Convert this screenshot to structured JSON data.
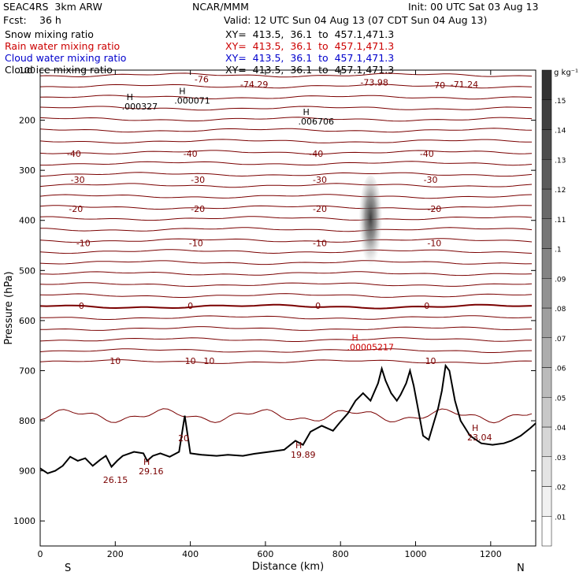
{
  "header": {
    "model": "SEAC4RS  3km ARW",
    "org": "NCAR/MMM",
    "init": "Init: 00 UTC Sat 03 Aug 13",
    "fcst_label": "Fcst:",
    "fcst_value": "36 h",
    "valid": "Valid: 12 UTC Sun 04 Aug 13 (07 CDT Sun 04 Aug 13)",
    "fields": [
      {
        "name": "Snow mixing ratio",
        "xy": "XY=  413.5,  36.1  to  457.1,471.3",
        "color": "#000000"
      },
      {
        "name": "Rain water mixing ratio",
        "xy": "XY=  413.5,  36.1  to  457.1,471.3",
        "color": "#cc0000"
      },
      {
        "name": "Cloud water mixing ratio",
        "xy": "XY=  413.5,  36.1  to  457.1,471.3",
        "color": "#0000cc"
      },
      {
        "name": "Cloud ice mixing ratio",
        "xy": "XY=  413.5,  36.1  to  457.1,471.3",
        "color": "#000000"
      }
    ]
  },
  "chart_data": {
    "type": "cross-section",
    "xlabel": "Distance (km)",
    "ylabel": "Pressure (hPa)",
    "xlim": [
      0,
      1320
    ],
    "ylim": [
      1050,
      100
    ],
    "xticks": [
      0,
      200,
      400,
      600,
      800,
      1000,
      1200
    ],
    "yticks": [
      100,
      200,
      300,
      400,
      500,
      600,
      700,
      800,
      900,
      1000
    ],
    "endpoint_labels": {
      "left": "S",
      "right": "N"
    },
    "colorbar": {
      "unit": "g kg⁻¹",
      "levels": [
        0.01,
        0.02,
        0.03,
        0.04,
        0.05,
        0.06,
        0.07,
        0.08,
        0.09,
        0.1,
        0.11,
        0.12,
        0.13,
        0.14,
        0.15
      ],
      "tick_labels": [
        ".01",
        ".02",
        ".03",
        ".04",
        ".05",
        ".06",
        ".07",
        ".08",
        ".09",
        ".1",
        ".11",
        ".12",
        ".13",
        ".14",
        ".15"
      ]
    },
    "shaded_feature": {
      "x_center": 880,
      "p_top": 310,
      "p_bottom": 500,
      "max_value": 0.13
    },
    "contour_color": "#7a0000",
    "contour_label_levels": [
      {
        "value": -40,
        "p": 267,
        "labels": [
          {
            "x": 90,
            "t": "-40"
          },
          {
            "x": 400,
            "t": "-40"
          },
          {
            "x": 735,
            "t": "-40"
          },
          {
            "x": 1030,
            "t": "-40"
          }
        ]
      },
      {
        "value": -30,
        "p": 319,
        "labels": [
          {
            "x": 100,
            "t": "-30"
          },
          {
            "x": 420,
            "t": "-30"
          },
          {
            "x": 745,
            "t": "-30"
          },
          {
            "x": 1040,
            "t": "-30"
          }
        ]
      },
      {
        "value": -20,
        "p": 377,
        "labels": [
          {
            "x": 95,
            "t": "-20"
          },
          {
            "x": 420,
            "t": "-20"
          },
          {
            "x": 745,
            "t": "-20"
          },
          {
            "x": 1050,
            "t": "-20"
          }
        ]
      },
      {
        "value": -10,
        "p": 445,
        "labels": [
          {
            "x": 115,
            "t": "-10"
          },
          {
            "x": 415,
            "t": "-10"
          },
          {
            "x": 745,
            "t": "-10"
          },
          {
            "x": 1050,
            "t": "-10"
          }
        ]
      },
      {
        "value": 0,
        "p": 570,
        "labels": [
          {
            "x": 110,
            "t": "0"
          },
          {
            "x": 400,
            "t": "0"
          },
          {
            "x": 740,
            "t": "0"
          },
          {
            "x": 1030,
            "t": "0"
          }
        ]
      },
      {
        "value": 10,
        "p": 680,
        "labels": [
          {
            "x": 200,
            "t": "10"
          },
          {
            "x": 400,
            "t": "10"
          },
          {
            "x": 450,
            "t": "10"
          },
          {
            "x": 1040,
            "t": "10"
          }
        ]
      }
    ],
    "top_labels": [
      {
        "x": 430,
        "p": 118,
        "t": "-76"
      },
      {
        "x": 570,
        "p": 128,
        "t": "-74.29"
      },
      {
        "x": 890,
        "p": 124,
        "t": "-73.98"
      },
      {
        "x": 1060,
        "p": 130,
        "t": "-70"
      },
      {
        "x": 1130,
        "p": 128,
        "t": "-71.24"
      }
    ],
    "extrema": [
      {
        "x": 230,
        "p": 160,
        "kind": "H",
        "value": ".000327",
        "color": "#000000"
      },
      {
        "x": 370,
        "p": 148,
        "kind": "H",
        "value": ".000071",
        "color": "#000000"
      },
      {
        "x": 700,
        "p": 190,
        "kind": "H",
        "value": ".006706",
        "color": "#000000"
      },
      {
        "x": 830,
        "p": 640,
        "kind": "H",
        "value": ".00005217",
        "color": "#cc0000"
      },
      {
        "x": 680,
        "p": 855,
        "kind": "H",
        "value": "19.89",
        "color": "#7a0000"
      },
      {
        "x": 275,
        "p": 888,
        "kind": "H",
        "value": "29.16",
        "color": "#7a0000"
      },
      {
        "x": 1150,
        "p": 820,
        "kind": "H",
        "value": "23.04",
        "color": "#7a0000"
      },
      {
        "x": 180,
        "p": 905,
        "kind": "",
        "value": "26.15",
        "color": "#7a0000"
      },
      {
        "x": 380,
        "p": 822,
        "kind": "",
        "value": "20",
        "color": "#7a0000"
      }
    ],
    "terrain": [
      [
        0,
        895
      ],
      [
        20,
        905
      ],
      [
        40,
        900
      ],
      [
        60,
        890
      ],
      [
        80,
        872
      ],
      [
        100,
        880
      ],
      [
        120,
        875
      ],
      [
        140,
        890
      ],
      [
        160,
        878
      ],
      [
        175,
        870
      ],
      [
        190,
        892
      ],
      [
        205,
        880
      ],
      [
        220,
        870
      ],
      [
        250,
        862
      ],
      [
        275,
        865
      ],
      [
        285,
        880
      ],
      [
        300,
        870
      ],
      [
        320,
        865
      ],
      [
        345,
        872
      ],
      [
        370,
        862
      ],
      [
        385,
        790
      ],
      [
        400,
        865
      ],
      [
        430,
        868
      ],
      [
        470,
        870
      ],
      [
        500,
        868
      ],
      [
        540,
        870
      ],
      [
        570,
        866
      ],
      [
        610,
        862
      ],
      [
        650,
        858
      ],
      [
        680,
        840
      ],
      [
        700,
        848
      ],
      [
        720,
        822
      ],
      [
        750,
        810
      ],
      [
        780,
        820
      ],
      [
        800,
        802
      ],
      [
        820,
        785
      ],
      [
        840,
        760
      ],
      [
        860,
        745
      ],
      [
        880,
        760
      ],
      [
        900,
        725
      ],
      [
        910,
        696
      ],
      [
        920,
        720
      ],
      [
        935,
        745
      ],
      [
        950,
        760
      ],
      [
        960,
        748
      ],
      [
        975,
        725
      ],
      [
        985,
        700
      ],
      [
        995,
        730
      ],
      [
        1005,
        770
      ],
      [
        1020,
        830
      ],
      [
        1035,
        838
      ],
      [
        1050,
        800
      ],
      [
        1060,
        775
      ],
      [
        1070,
        740
      ],
      [
        1080,
        690
      ],
      [
        1090,
        700
      ],
      [
        1105,
        760
      ],
      [
        1120,
        800
      ],
      [
        1145,
        830
      ],
      [
        1175,
        845
      ],
      [
        1205,
        848
      ],
      [
        1235,
        845
      ],
      [
        1255,
        840
      ],
      [
        1280,
        830
      ],
      [
        1305,
        815
      ],
      [
        1320,
        805
      ]
    ]
  }
}
